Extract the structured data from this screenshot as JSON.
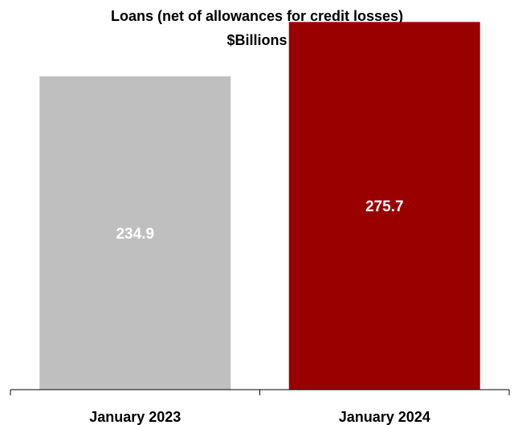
{
  "chart_data": {
    "type": "bar",
    "title": "Loans (net of allowances for credit losses)",
    "subtitle": "$Billions",
    "categories": [
      "January 2023",
      "January 2024"
    ],
    "values": [
      234.9,
      275.7
    ],
    "data_labels": [
      "234.9",
      "275.7"
    ],
    "colors": [
      "#bfbfbf",
      "#990000"
    ],
    "label_color": "#ffffff",
    "ylim": [
      0,
      300
    ],
    "grid": false,
    "legend": "none"
  }
}
